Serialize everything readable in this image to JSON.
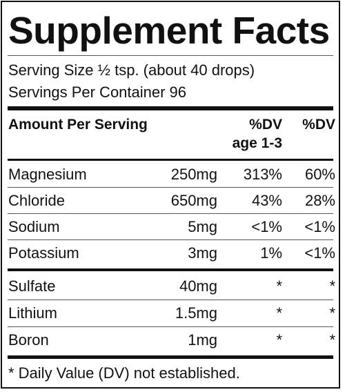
{
  "title": "Supplement Facts",
  "serving_size": "Serving Size ½ tsp. (about 40 drops)",
  "servings_per_container": "Servings Per Container 96",
  "header": {
    "amount": "Amount Per Serving",
    "dv_child_line1": "%DV",
    "dv_child_line2": "age 1-3",
    "dv_adult": "%DV"
  },
  "rows": [
    {
      "name": "Magnesium",
      "amount": "250mg",
      "dv_child": "313%",
      "dv_adult": "60%"
    },
    {
      "name": "Chloride",
      "amount": "650mg",
      "dv_child": "43%",
      "dv_adult": "28%"
    },
    {
      "name": "Sodium",
      "amount": "5mg",
      "dv_child": "<1%",
      "dv_adult": "<1%"
    },
    {
      "name": "Potassium",
      "amount": "3mg",
      "dv_child": "1%",
      "dv_adult": "<1%"
    },
    {
      "name": "Sulfate",
      "amount": "40mg",
      "dv_child": "*",
      "dv_adult": "*"
    },
    {
      "name": "Lithium",
      "amount": "1.5mg",
      "dv_child": "*",
      "dv_adult": "*"
    },
    {
      "name": "Boron",
      "amount": "1mg",
      "dv_child": "*",
      "dv_adult": "*"
    }
  ],
  "footnote": "* Daily Value (DV) not established."
}
